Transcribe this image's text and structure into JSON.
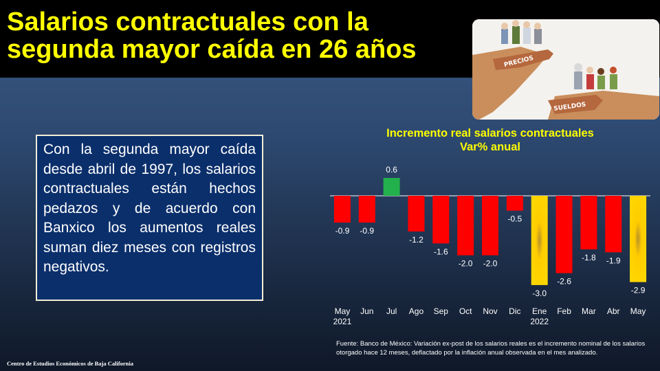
{
  "title": "Salarios contractuales con la segunda mayor caída en 26 años",
  "paragraph": "Con la segunda mayor caída desde abril de 1997, los salarios contractuales están hechos pedazos y de acuerdo con Banxico los aumentos reales suman diez meses con registros negativos.",
  "cartoon": {
    "sign_top": "PRECIOS",
    "sign_bottom": "SUELDOS"
  },
  "chart_data": {
    "type": "bar",
    "title": "Incremento real salarios contractuales",
    "subtitle": "Var% anual",
    "categories": [
      "May",
      "Jun",
      "Jul",
      "Ago",
      "Sep",
      "Oct",
      "Nov",
      "Dic",
      "Ene",
      "Feb",
      "Mar",
      "Abr",
      "May"
    ],
    "year_labels": [
      "2021",
      "",
      "",
      "",
      "",
      "",
      "",
      "",
      "2022",
      "",
      "",
      "",
      ""
    ],
    "values": [
      -0.9,
      -0.9,
      0.6,
      -1.2,
      -1.6,
      -2.0,
      -2.0,
      -0.5,
      -3.0,
      -2.6,
      -1.8,
      -1.9,
      -2.9
    ],
    "value_labels": [
      "-0.9",
      "-0.9",
      "0.6",
      "-1.2",
      "-1.6",
      "-2.0",
      "-2.0",
      "-0.5",
      "-3.0",
      "-2.6",
      "-1.8",
      "-1.9",
      "-2.9"
    ],
    "highlight": [
      "none",
      "none",
      "positive",
      "none",
      "none",
      "none",
      "none",
      "none",
      "highlight",
      "none",
      "none",
      "none",
      "highlight"
    ],
    "colors": {
      "negative": "#ff0000",
      "positive": "#22b14c",
      "highlight": "#ffc000",
      "axis": "#ffffff"
    },
    "ylim": [
      -3.0,
      0.6
    ],
    "xlabel": "",
    "ylabel": "",
    "grid": false
  },
  "source": "Fuente: Banco de México: Variación ex-post de los salarios reales es el incremento nominal de los salarios otorgado hace 12 meses, deflactado por la inflación anual observada en el mes analizado.",
  "footer": "Centro de Estudios Económicos de Baja California"
}
